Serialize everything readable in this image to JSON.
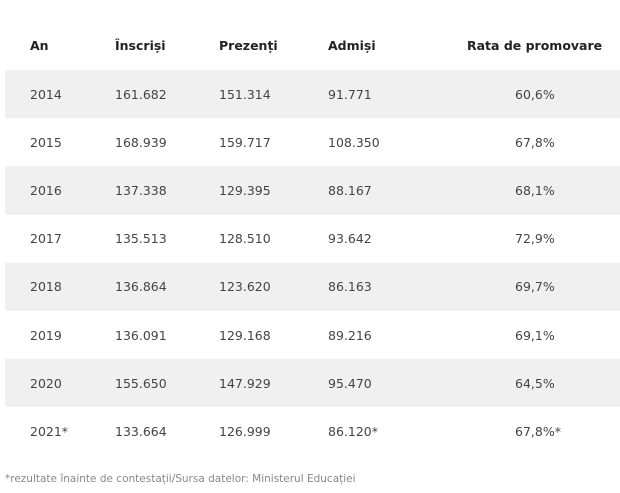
{
  "table": {
    "headers": {
      "year": "An",
      "enrolled": "Înscriși",
      "present": "Prezenți",
      "admitted": "Admiși",
      "pass_rate": "Rata de promovare"
    },
    "rows": [
      {
        "year": "2014",
        "enrolled": "161.682",
        "present": "151.314",
        "admitted": "91.771",
        "pass_rate": "60,6%"
      },
      {
        "year": "2015",
        "enrolled": "168.939",
        "present": "159.717",
        "admitted": "108.350",
        "pass_rate": "67,8%"
      },
      {
        "year": "2016",
        "enrolled": "137.338",
        "present": "129.395",
        "admitted": "88.167",
        "pass_rate": "68,1%"
      },
      {
        "year": "2017",
        "enrolled": "135.513",
        "present": "128.510",
        "admitted": "93.642",
        "pass_rate": "72,9%"
      },
      {
        "year": "2018",
        "enrolled": "136.864",
        "present": "123.620",
        "admitted": "86.163",
        "pass_rate": "69,7%"
      },
      {
        "year": "2019",
        "enrolled": "136.091",
        "present": "129.168",
        "admitted": "89.216",
        "pass_rate": "69,1%"
      },
      {
        "year": "2020",
        "enrolled": "155.650",
        "present": "147.929",
        "admitted": "95.470",
        "pass_rate": "64,5%"
      },
      {
        "year": "2021*",
        "enrolled": "133.664",
        "present": "126.999",
        "admitted": "86.120*",
        "pass_rate": "67,8%*"
      }
    ]
  },
  "footnote": "*rezultate înainte de contestații/Sursa datelor: Ministerul Educației",
  "colors": {
    "row_shade": "#f0f0f0",
    "text": "#444444",
    "header_text": "#222222",
    "footnote_text": "#888888"
  }
}
